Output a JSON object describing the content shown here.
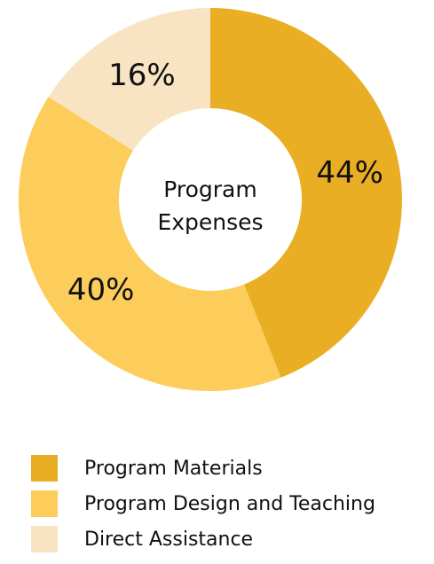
{
  "chart_data": {
    "type": "pie",
    "donut": true,
    "center_label": [
      "Program",
      "Expenses"
    ],
    "slices": [
      {
        "name": "Program Materials",
        "value": 44,
        "label": "44%",
        "color": "#E9AE24"
      },
      {
        "name": "Program Design and Teaching",
        "value": 40,
        "label": "40%",
        "color": "#FDCD5B"
      },
      {
        "name": "Direct Assistance",
        "value": 16,
        "label": "16%",
        "color": "#F8E3C2"
      }
    ],
    "legend_position": "bottom"
  }
}
